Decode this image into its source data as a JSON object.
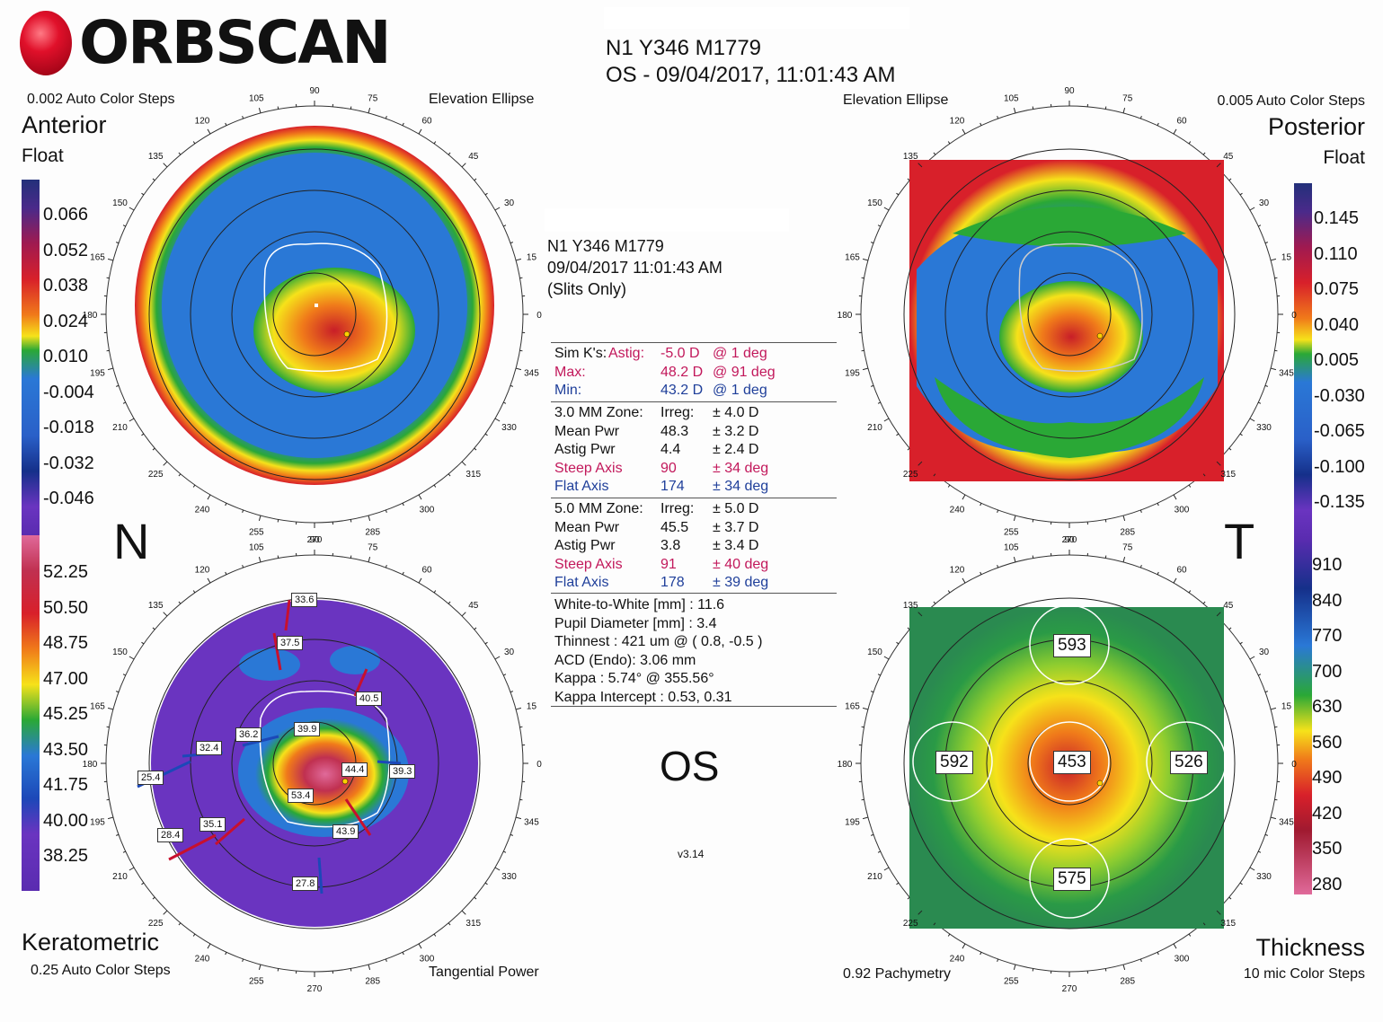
{
  "header": {
    "brand": "ORBSCAN",
    "patient_id": "N1 Y346 M1779",
    "exam_line": "OS - 09/04/2017, 11:01:43 AM"
  },
  "anterior": {
    "steps": "0.002 Auto Color Steps",
    "map_type": "Elevation Ellipse",
    "title": "Anterior",
    "subtitle": "Float",
    "scale": [
      "0.066",
      "0.052",
      "0.038",
      "0.024",
      "0.010",
      "-0.004",
      "-0.018",
      "-0.032",
      "-0.046"
    ]
  },
  "posterior": {
    "steps": "0.005 Auto Color Steps",
    "map_type": "Elevation Ellipse",
    "title": "Posterior",
    "subtitle": "Float",
    "scale": [
      "0.145",
      "0.110",
      "0.075",
      "0.040",
      "0.005",
      "-0.030",
      "-0.065",
      "-0.100",
      "-0.135"
    ]
  },
  "keratometric": {
    "title": "Keratometric",
    "steps": "0.25 Auto Color Steps",
    "map_type": "Tangential Power",
    "scale": [
      "52.25",
      "50.50",
      "48.75",
      "47.00",
      "45.25",
      "43.50",
      "41.75",
      "40.00",
      "38.25"
    ],
    "labels": [
      "33.6",
      "37.5",
      "40.5",
      "36.2",
      "32.4",
      "39.9",
      "44.4",
      "39.3",
      "25.4",
      "53.4",
      "35.1",
      "28.4",
      "43.9",
      "27.8"
    ]
  },
  "thickness": {
    "title": "Thickness",
    "steps": "10 mic Color Steps",
    "map_type": "0.92 Pachymetry",
    "scale": [
      "910",
      "840",
      "770",
      "700",
      "630",
      "560",
      "490",
      "420",
      "350",
      "280"
    ],
    "values": [
      "593",
      "592",
      "453",
      "526",
      "575"
    ]
  },
  "side_labels": {
    "nasal": "N",
    "temporal": "T",
    "eye": "OS"
  },
  "center_info": {
    "id": "N1 Y346 M1779",
    "datetime": "09/04/2017 11:01:43 AM",
    "mode": "(Slits Only)",
    "sim_k": [
      {
        "label": "Sim K's:",
        "label2": "Astig:",
        "value": "-5.0 D",
        "extra": "@ 1 deg",
        "color": "#c2185b"
      },
      {
        "label": "Max:",
        "value": "48.2 D",
        "extra": "@ 91 deg",
        "color": "#c2185b"
      },
      {
        "label": "Min:",
        "value": "43.2 D",
        "extra": "@ 1 deg",
        "color": "#1f3f9a"
      }
    ],
    "zone3": [
      {
        "label": "3.0 MM Zone:",
        "value": "Irreg:",
        "extra": "± 4.0 D",
        "color": "#111"
      },
      {
        "label": "Mean Pwr",
        "value": "48.3",
        "extra": "± 3.2 D",
        "color": "#111"
      },
      {
        "label": "Astig Pwr",
        "value": "4.4",
        "extra": "± 2.4 D",
        "color": "#111"
      },
      {
        "label": "Steep Axis",
        "value": "90",
        "extra": "± 34 deg",
        "color": "#c2185b"
      },
      {
        "label": "Flat Axis",
        "value": "174",
        "extra": "± 34 deg",
        "color": "#1f3f9a"
      }
    ],
    "zone5": [
      {
        "label": "5.0 MM Zone:",
        "value": "Irreg:",
        "extra": "± 5.0 D",
        "color": "#111"
      },
      {
        "label": "Mean Pwr",
        "value": "45.5",
        "extra": "± 3.7 D",
        "color": "#111"
      },
      {
        "label": "Astig Pwr",
        "value": "3.8",
        "extra": "± 3.4 D",
        "color": "#111"
      },
      {
        "label": "Steep Axis",
        "value": "91",
        "extra": "± 40 deg",
        "color": "#c2185b"
      },
      {
        "label": "Flat Axis",
        "value": "178",
        "extra": "± 39 deg",
        "color": "#1f3f9a"
      }
    ],
    "measures": [
      "White-to-White [mm] : 11.6",
      "Pupil Diameter [mm] :  3.4",
      "Thinnest : 421 um @ ( 0.8, -0.5 )",
      "ACD (Endo): 3.06 mm",
      "Kappa : 5.74° @ 355.56°",
      "Kappa Intercept : 0.53, 0.31"
    ],
    "version": "v3.14"
  },
  "colors": {
    "red": "#d8202a",
    "orange": "#f07a1a",
    "yellow": "#f6e21a",
    "green": "#2aa836",
    "blue": "#2a78d6",
    "purple": "#6a34c0",
    "pink": "#e06a9a"
  }
}
